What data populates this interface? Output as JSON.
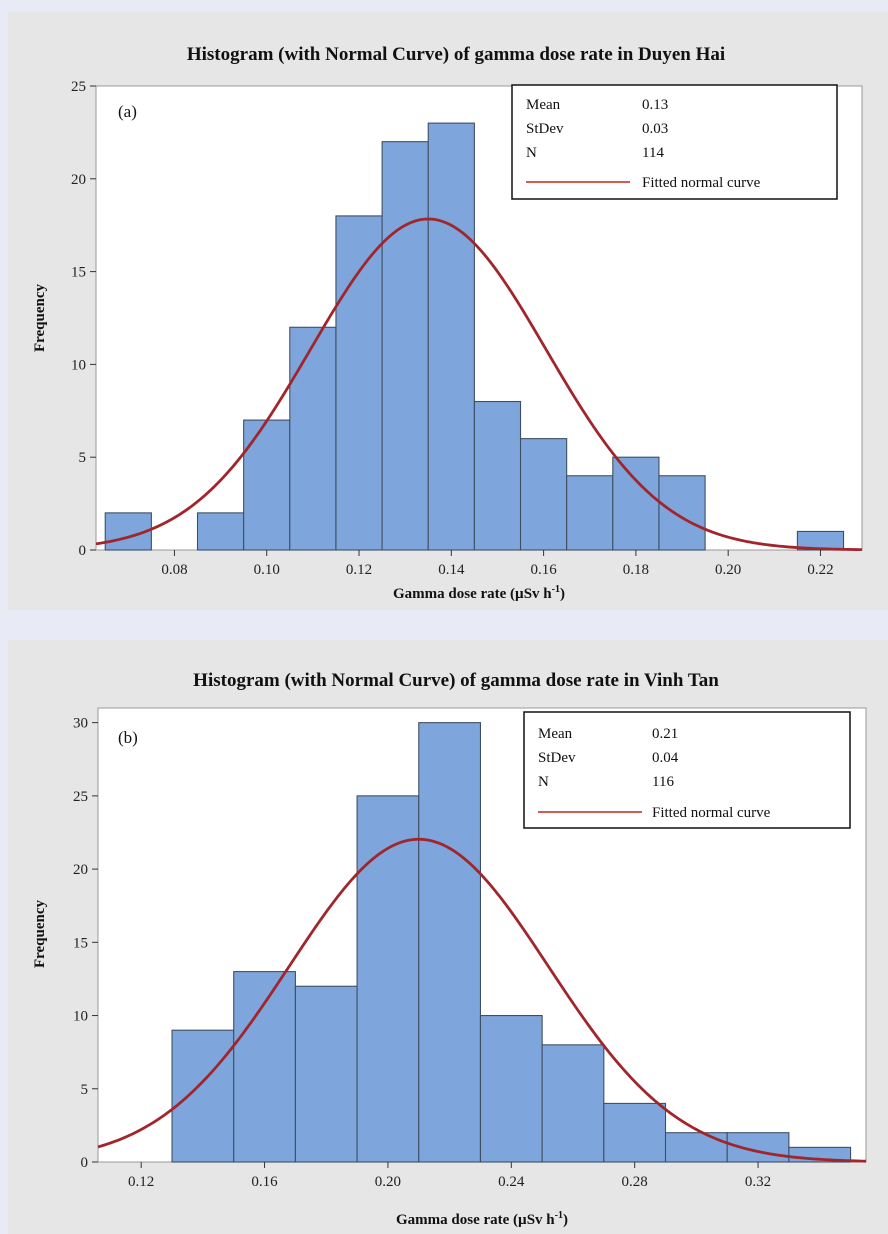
{
  "colors": {
    "bar_fill": "#7ea6dc",
    "bar_edge": "#3f4f63",
    "curve": "#a1262c",
    "panel_bg": "#e6e6e6",
    "plot_bg": "#ffffff"
  },
  "chart_data": [
    {
      "type": "bar",
      "title": "Histogram (with Normal Curve) of gamma dose rate in Duyen Hai",
      "panel_label": "(a)",
      "xlabel": "Gamma dose rate (µSv h",
      "xlabel_sup": "-1",
      "xlabel_close": ")",
      "ylabel": "Frequency",
      "xlim": [
        0.063,
        0.229
      ],
      "ylim": [
        0,
        25
      ],
      "xticks": [
        0.08,
        0.1,
        0.12,
        0.14,
        0.16,
        0.18,
        0.2,
        0.22
      ],
      "xtick_labels": [
        "0.08",
        "0.10",
        "0.12",
        "0.14",
        "0.16",
        "0.18",
        "0.20",
        "0.22"
      ],
      "yticks": [
        0,
        5,
        10,
        15,
        20,
        25
      ],
      "ytick_labels": [
        "0",
        "5",
        "10",
        "15",
        "20",
        "25"
      ],
      "bin_width": 0.01,
      "bin_centers": [
        0.07,
        0.08,
        0.09,
        0.1,
        0.11,
        0.12,
        0.13,
        0.14,
        0.15,
        0.16,
        0.17,
        0.18,
        0.19,
        0.2,
        0.21,
        0.22
      ],
      "values": [
        2,
        0,
        2,
        7,
        12,
        18,
        22,
        23,
        8,
        6,
        4,
        5,
        4,
        0,
        0,
        1
      ],
      "normal_curve": {
        "mean": 0.135,
        "sd": 0.0255,
        "scale": 114
      },
      "legend": {
        "position": "top-right",
        "rows": [
          {
            "label": "Mean",
            "value": "0.13"
          },
          {
            "label": "StDev",
            "value": "0.03"
          },
          {
            "label": "N",
            "value": "114"
          }
        ],
        "curve_label": "Fitted normal curve"
      },
      "grid": false
    },
    {
      "type": "bar",
      "title": "Histogram (with Normal Curve) of gamma dose rate in Vinh Tan",
      "panel_label": "(b)",
      "xlabel": "Gamma dose rate (µSv h",
      "xlabel_sup": "-1",
      "xlabel_close": ")",
      "ylabel": "Frequency",
      "xlim": [
        0.106,
        0.355
      ],
      "ylim": [
        0,
        31
      ],
      "xticks": [
        0.12,
        0.16,
        0.2,
        0.24,
        0.28,
        0.32
      ],
      "xtick_labels": [
        "0.12",
        "0.16",
        "0.20",
        "0.24",
        "0.28",
        "0.32"
      ],
      "yticks": [
        0,
        5,
        10,
        15,
        20,
        25,
        30
      ],
      "ytick_labels": [
        "0",
        "5",
        "10",
        "15",
        "20",
        "25",
        "30"
      ],
      "bin_width": 0.02,
      "bin_centers": [
        0.14,
        0.16,
        0.18,
        0.2,
        0.22,
        0.24,
        0.26,
        0.28,
        0.3,
        0.32,
        0.34
      ],
      "values": [
        9,
        13,
        12,
        25,
        30,
        10,
        8,
        4,
        2,
        2,
        1
      ],
      "normal_curve": {
        "mean": 0.21,
        "sd": 0.042,
        "scale": 116
      },
      "legend": {
        "position": "top-right",
        "rows": [
          {
            "label": "Mean",
            "value": "0.21"
          },
          {
            "label": "StDev",
            "value": "0.04"
          },
          {
            "label": "N",
            "value": "116"
          }
        ],
        "curve_label": "Fitted normal curve"
      },
      "grid": false
    }
  ]
}
